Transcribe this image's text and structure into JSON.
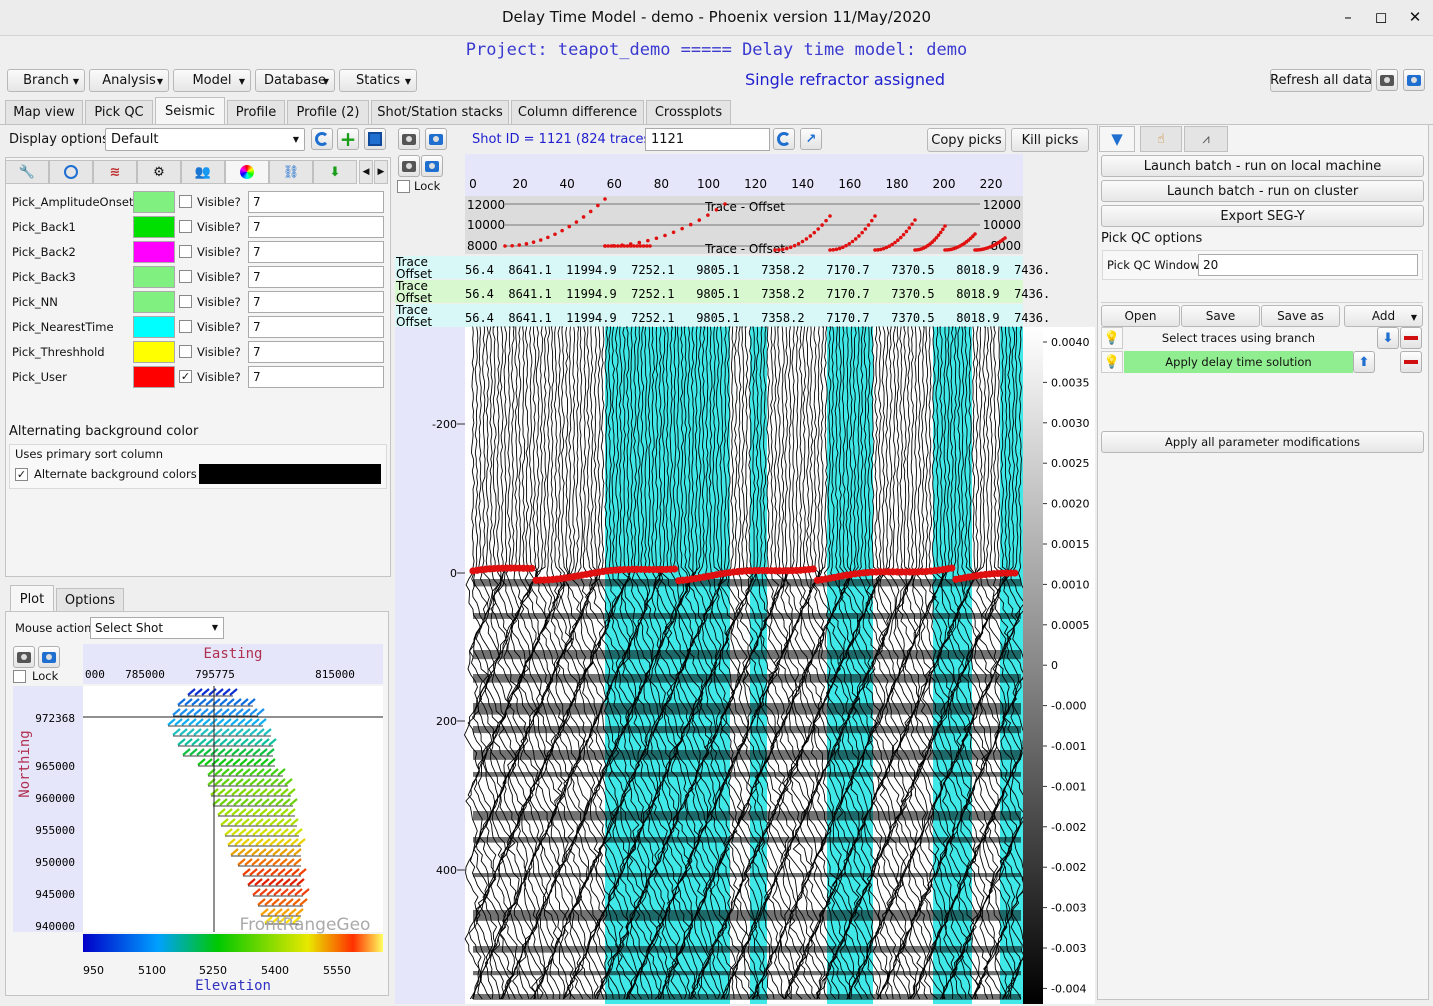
{
  "window": {
    "title": "Delay Time Model - demo - Phoenix version 11/May/2020",
    "minimize": "–",
    "maximize": "◻",
    "close": "✕"
  },
  "header": {
    "project_line": "Project: teapot_demo ===== Delay time model: demo",
    "status_line": "Single refractor assigned",
    "refresh_all": "Refresh all data"
  },
  "menus": [
    "Branch",
    "Analysis",
    "Model",
    "Database",
    "Statics"
  ],
  "tabs": [
    "Map view",
    "Pick QC",
    "Seismic",
    "Profile",
    "Profile (2)",
    "Shot/Station stacks",
    "Column difference",
    "Crossplots"
  ],
  "active_tab": "Seismic",
  "left": {
    "display_options_label": "Display options",
    "display_options_value": "Default",
    "picks": [
      {
        "name": "Pick_AmplitudeOnset",
        "color": "#80f080",
        "visible": false,
        "value": "7"
      },
      {
        "name": "Pick_Back1",
        "color": "#00e000",
        "visible": false,
        "value": "7"
      },
      {
        "name": "Pick_Back2",
        "color": "#ff00ff",
        "visible": false,
        "value": "7"
      },
      {
        "name": "Pick_Back3",
        "color": "#80f080",
        "visible": false,
        "value": "7"
      },
      {
        "name": "Pick_NN",
        "color": "#80f080",
        "visible": false,
        "value": "7"
      },
      {
        "name": "Pick_NearestTime",
        "color": "#00ffff",
        "visible": false,
        "value": "7"
      },
      {
        "name": "Pick_Threshhold",
        "color": "#ffff00",
        "visible": false,
        "value": "7"
      },
      {
        "name": "Pick_User",
        "color": "#ff0000",
        "visible": true,
        "value": "7"
      }
    ],
    "visible_label": "Visible?",
    "alt_bg_title": "Alternating background color",
    "uses_primary_sort": "Uses primary sort column",
    "alternate_bg_label": "Alternate background colors",
    "alternate_bg_checked": true,
    "alt_bg_color": "#000000",
    "plot_tabs": [
      "Plot",
      "Options"
    ],
    "mouse_action_label": "Mouse action",
    "mouse_action_value": "Select Shot",
    "lock_label": "Lock",
    "map": {
      "easting_label": "Easting",
      "northing_label": "Northing",
      "easting_ticks": [
        "000",
        "785000",
        "795775",
        "815000"
      ],
      "northing_ticks": [
        "972368",
        "965000",
        "960000",
        "955000",
        "950000",
        "945000",
        "940000"
      ],
      "elevation_label": "Elevation",
      "elevation_ticks": [
        "950",
        "5100",
        "5250",
        "5400",
        "5550"
      ],
      "watermark": "FrontRangeGeo"
    }
  },
  "center": {
    "lock_label": "Lock",
    "shot_id_label": "Shot ID = 1121 (824 traces)",
    "shot_id_value": "1121",
    "copy_picks": "Copy picks",
    "kill_picks": "Kill picks",
    "trace_axis_ticks": [
      "0",
      "20",
      "40",
      "60",
      "80",
      "100",
      "120",
      "140",
      "160",
      "180",
      "200",
      "220"
    ],
    "offset_ticks": [
      "12000",
      "10000",
      "8000"
    ],
    "offset_ticks_right": [
      "12000",
      "10000",
      "8000"
    ],
    "offset_caption_top": "Trace - Offset",
    "offset_caption_bottom": "Trace - Offset",
    "header_rows": [
      {
        "label1": "Trace",
        "label2": "Offset",
        "values": "56.4  8641.1  11994.9  7252.1   9805.1   7358.2   7170.7   7370.5   8018.9  7436."
      },
      {
        "label1": "Trace",
        "label2": "Offset",
        "values": "56.4  8641.1  11994.9  7252.1   9805.1   7358.2   7170.7   7370.5   8018.9  7436."
      },
      {
        "label1": "Trace",
        "label2": "Offset",
        "values": "56.4  8641.1  11994.9  7252.1   9805.1   7358.2   7170.7   7370.5   8018.9  7436."
      }
    ],
    "time_ticks": [
      "-200",
      "0",
      "200",
      "400"
    ],
    "amp_ticks": [
      "0.0040",
      "0.0035",
      "0.0030",
      "0.0025",
      "0.0020",
      "0.0015",
      "0.0010",
      "0.0005",
      "0",
      "-0.000",
      "-0.001",
      "-0.001",
      "-0.002",
      "-0.002",
      "-0.003",
      "-0.003",
      "-0.004"
    ]
  },
  "right": {
    "launch_local": "Launch batch - run on local machine",
    "launch_cluster": "Launch batch - run on cluster",
    "export_segy": "Export SEG-Y",
    "pick_qc_options": "Pick QC options",
    "pick_qc_window_label": "Pick QC Window",
    "pick_qc_window_value": "20",
    "flow_buttons": [
      "Open",
      "Save",
      "Save as",
      "Add"
    ],
    "steps": [
      {
        "label": "Select traces using branch",
        "highlight": false
      },
      {
        "label": "Apply delay time solution",
        "highlight": true
      }
    ],
    "apply_all": "Apply all parameter modifications"
  }
}
